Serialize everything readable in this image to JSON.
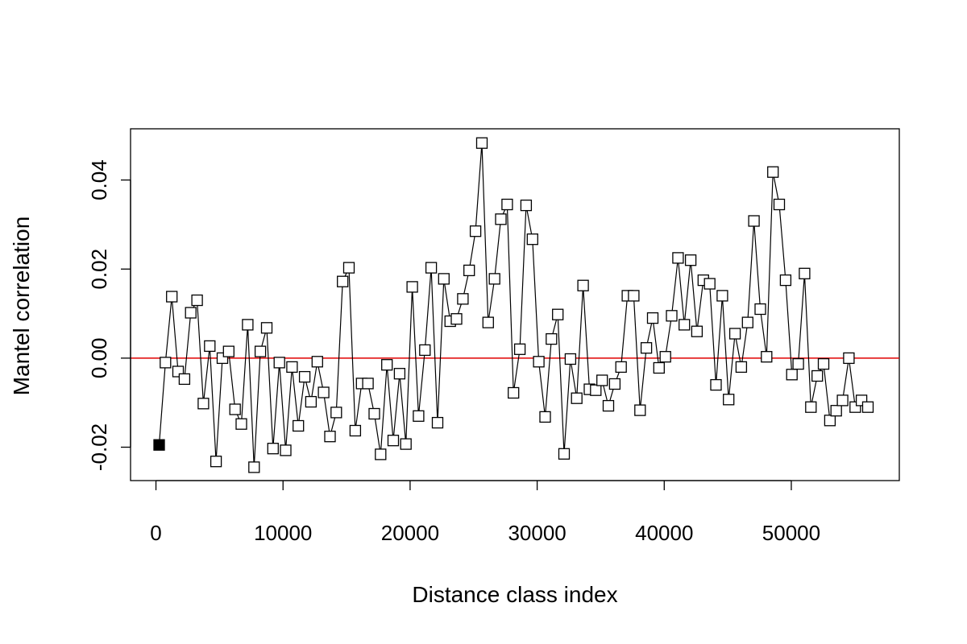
{
  "chart_data": {
    "type": "line",
    "title": "",
    "xlabel": "Distance class index",
    "ylabel": "Mantel correlation",
    "xlim": [
      -2000,
      58500
    ],
    "ylim": [
      -0.0275,
      0.0515
    ],
    "xticks": [
      0,
      10000,
      20000,
      30000,
      40000,
      50000
    ],
    "yticks": [
      -0.02,
      0.0,
      0.02,
      0.04
    ],
    "ytick_labels": [
      "-0.02",
      "0.00",
      "0.02",
      "0.04"
    ],
    "reference_line": {
      "y": 0,
      "color": "#e00000"
    },
    "grid": false,
    "legend": "none",
    "marker": "open-square",
    "highlighted_marker": "filled-square (first point)",
    "series": [
      {
        "x": [
          249,
          747,
          1245,
          1743,
          2241,
          2739,
          3237,
          3735,
          4233,
          4731,
          5229,
          5727,
          6225,
          6723,
          7221,
          7719,
          8217,
          8715,
          9213,
          9711,
          10209,
          10707,
          11205,
          11703,
          12201,
          12699,
          13197,
          13695,
          14193,
          14691,
          15189,
          15687,
          16185,
          16683,
          17181,
          17679,
          18177,
          18675,
          19173,
          19671,
          20169,
          20667,
          21165,
          21663,
          22161,
          22659,
          23157,
          23655,
          24153,
          24651,
          25149,
          25647,
          26145,
          26643,
          27141,
          27639,
          28137,
          28635,
          29133,
          29631,
          30129,
          30627,
          31125,
          31623,
          32121,
          32619,
          33117,
          33615,
          34113,
          34611,
          35109,
          35607,
          36105,
          36603,
          37101,
          37599,
          38097,
          38595,
          39093,
          39591,
          40089,
          40587,
          41085,
          41583,
          42081,
          42579,
          43077,
          43575,
          44073,
          44571,
          45069,
          45567,
          46065,
          46563,
          47061,
          47559,
          48057,
          48555,
          49053,
          49551,
          50049,
          50547,
          51045,
          51543,
          52041,
          52539,
          53037,
          53535,
          54033,
          54531,
          55029,
          55527,
          56025
        ],
        "y": [
          -0.0195,
          -0.001,
          0.0138,
          -0.003,
          -0.0047,
          0.0102,
          0.013,
          -0.0102,
          0.0027,
          -0.0232,
          0.0,
          0.0015,
          -0.0115,
          -0.0148,
          0.0075,
          -0.0245,
          0.0015,
          0.0068,
          -0.0203,
          -0.001,
          -0.0207,
          -0.002,
          -0.0152,
          -0.0042,
          -0.0098,
          -0.0008,
          -0.0077,
          -0.0176,
          -0.0122,
          0.0172,
          0.0203,
          -0.0163,
          -0.0057,
          -0.0057,
          -0.0125,
          -0.0216,
          -0.0015,
          -0.0185,
          -0.0035,
          -0.0193,
          0.016,
          -0.013,
          0.0018,
          0.0203,
          -0.0145,
          0.0178,
          0.0083,
          0.0088,
          0.0133,
          0.0197,
          0.0285,
          0.0483,
          0.008,
          0.0178,
          0.0312,
          0.0345,
          -0.0078,
          0.002,
          0.0343,
          0.0267,
          -0.0008,
          -0.0132,
          0.0043,
          0.0098,
          -0.0215,
          -0.0002,
          -0.009,
          0.0163,
          -0.007,
          -0.0072,
          -0.005,
          -0.0107,
          -0.0058,
          -0.002,
          0.014,
          0.014,
          -0.0117,
          0.0023,
          0.009,
          -0.0022,
          0.0003,
          0.0095,
          0.0225,
          0.0075,
          0.022,
          0.006,
          0.0175,
          0.0167,
          -0.006,
          0.014,
          -0.0093,
          0.0055,
          -0.002,
          0.008,
          0.0308,
          0.011,
          0.0003,
          0.0418,
          0.0345,
          0.0175,
          -0.0037,
          -0.0013,
          0.019,
          -0.011,
          -0.004,
          -0.0013,
          -0.014,
          -0.0118,
          -0.0095,
          0.0,
          -0.011,
          -0.0095,
          -0.011
        ]
      }
    ]
  }
}
